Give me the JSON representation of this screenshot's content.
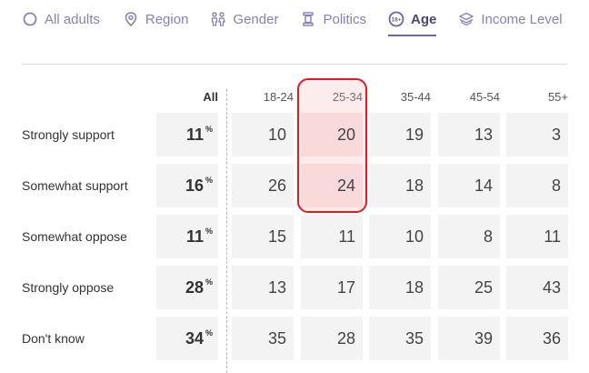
{
  "tabs": [
    {
      "label": "All adults",
      "icon": "circle-icon"
    },
    {
      "label": "Region",
      "icon": "location-pin-icon"
    },
    {
      "label": "Gender",
      "icon": "gender-icon"
    },
    {
      "label": "Politics",
      "icon": "column-icon"
    },
    {
      "label": "Age",
      "icon": "age-icon",
      "active": true
    },
    {
      "label": "Income Level",
      "icon": "stack-icon"
    }
  ],
  "table": {
    "all_header": "All",
    "age_headers": [
      "18-24",
      "25-34",
      "35-44",
      "45-54",
      "55+"
    ],
    "percent_symbol": "%",
    "rows": [
      {
        "label": "Strongly support",
        "all": "11",
        "values": [
          "10",
          "20",
          "19",
          "13",
          "3"
        ]
      },
      {
        "label": "Somewhat support",
        "all": "16",
        "values": [
          "26",
          "24",
          "18",
          "14",
          "8"
        ]
      },
      {
        "label": "Somewhat oppose",
        "all": "11",
        "values": [
          "15",
          "11",
          "10",
          "8",
          "11"
        ]
      },
      {
        "label": "Strongly oppose",
        "all": "28",
        "values": [
          "13",
          "17",
          "18",
          "25",
          "43"
        ]
      },
      {
        "label": "Don't know",
        "all": "34",
        "values": [
          "35",
          "28",
          "35",
          "39",
          "36"
        ]
      }
    ]
  },
  "colors": {
    "accent": "#6f63a3",
    "highlight_border": "#e01b24"
  }
}
